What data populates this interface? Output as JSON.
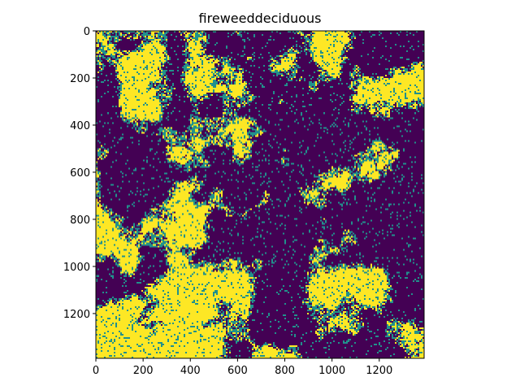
{
  "chart_data": {
    "type": "heatmap",
    "title": "fireweeddeciduous",
    "xlabel": "",
    "ylabel": "",
    "x_range": [
      0,
      1390
    ],
    "y_range": [
      0,
      1390
    ],
    "y_inverted": true,
    "x_ticks": [
      0,
      200,
      400,
      600,
      800,
      1000,
      1200
    ],
    "y_ticks": [
      0,
      200,
      400,
      600,
      800,
      1000,
      1200
    ],
    "colormap": "viridis",
    "value_range": [
      0,
      1
    ],
    "colors": {
      "low": "#440154",
      "mid": "#21918c",
      "high": "#fde725"
    },
    "grid": false,
    "legend": "none",
    "description_of_values": "binary raster mask"
  }
}
